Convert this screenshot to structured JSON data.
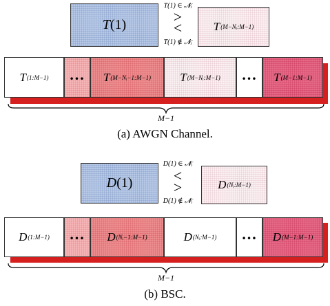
{
  "panel_a": {
    "top_left_T": "T",
    "top_left_arg": "(1)",
    "cond_top": "T(1) ∈ 𝓝ᵢ",
    "cond_bottom": "T(1) ∉ 𝓝ᵢ",
    "top_right_T": "T",
    "top_right_sub": "(M−Nᵢ:M−1)",
    "cells": [
      {
        "sym": "T",
        "sub": "(1:M−1)"
      },
      {
        "sym": "…"
      },
      {
        "sym": "T",
        "sub": "(M−Nᵢ−1:M−1)"
      },
      {
        "sym": "T",
        "sub": "(M−Nᵢ:M−1)"
      },
      {
        "sym": "…"
      },
      {
        "sym": "T",
        "sub": "(M−1:M−1)"
      }
    ],
    "brace_label": "M−1",
    "caption": "(a) AWGN Channel."
  },
  "panel_b": {
    "top_left_T": "D",
    "top_left_arg": "(1)",
    "cond_top": "D(1) ∈ 𝓝ᵢ",
    "cond_bottom": "D(1) ∉ 𝓝ᵢ",
    "top_right_T": "D",
    "top_right_sub": "(Nᵢ:M−1)",
    "cells": [
      {
        "sym": "D",
        "sub": "(1:M−1)"
      },
      {
        "sym": "…"
      },
      {
        "sym": "D",
        "sub": "(Nᵢ−1:M−1)"
      },
      {
        "sym": "D",
        "sub": "(Nᵢ:M−1)"
      },
      {
        "sym": "…"
      },
      {
        "sym": "D",
        "sub": "(M−1:M−1)"
      }
    ],
    "brace_label": "M−1",
    "caption": "(b) BSC."
  }
}
